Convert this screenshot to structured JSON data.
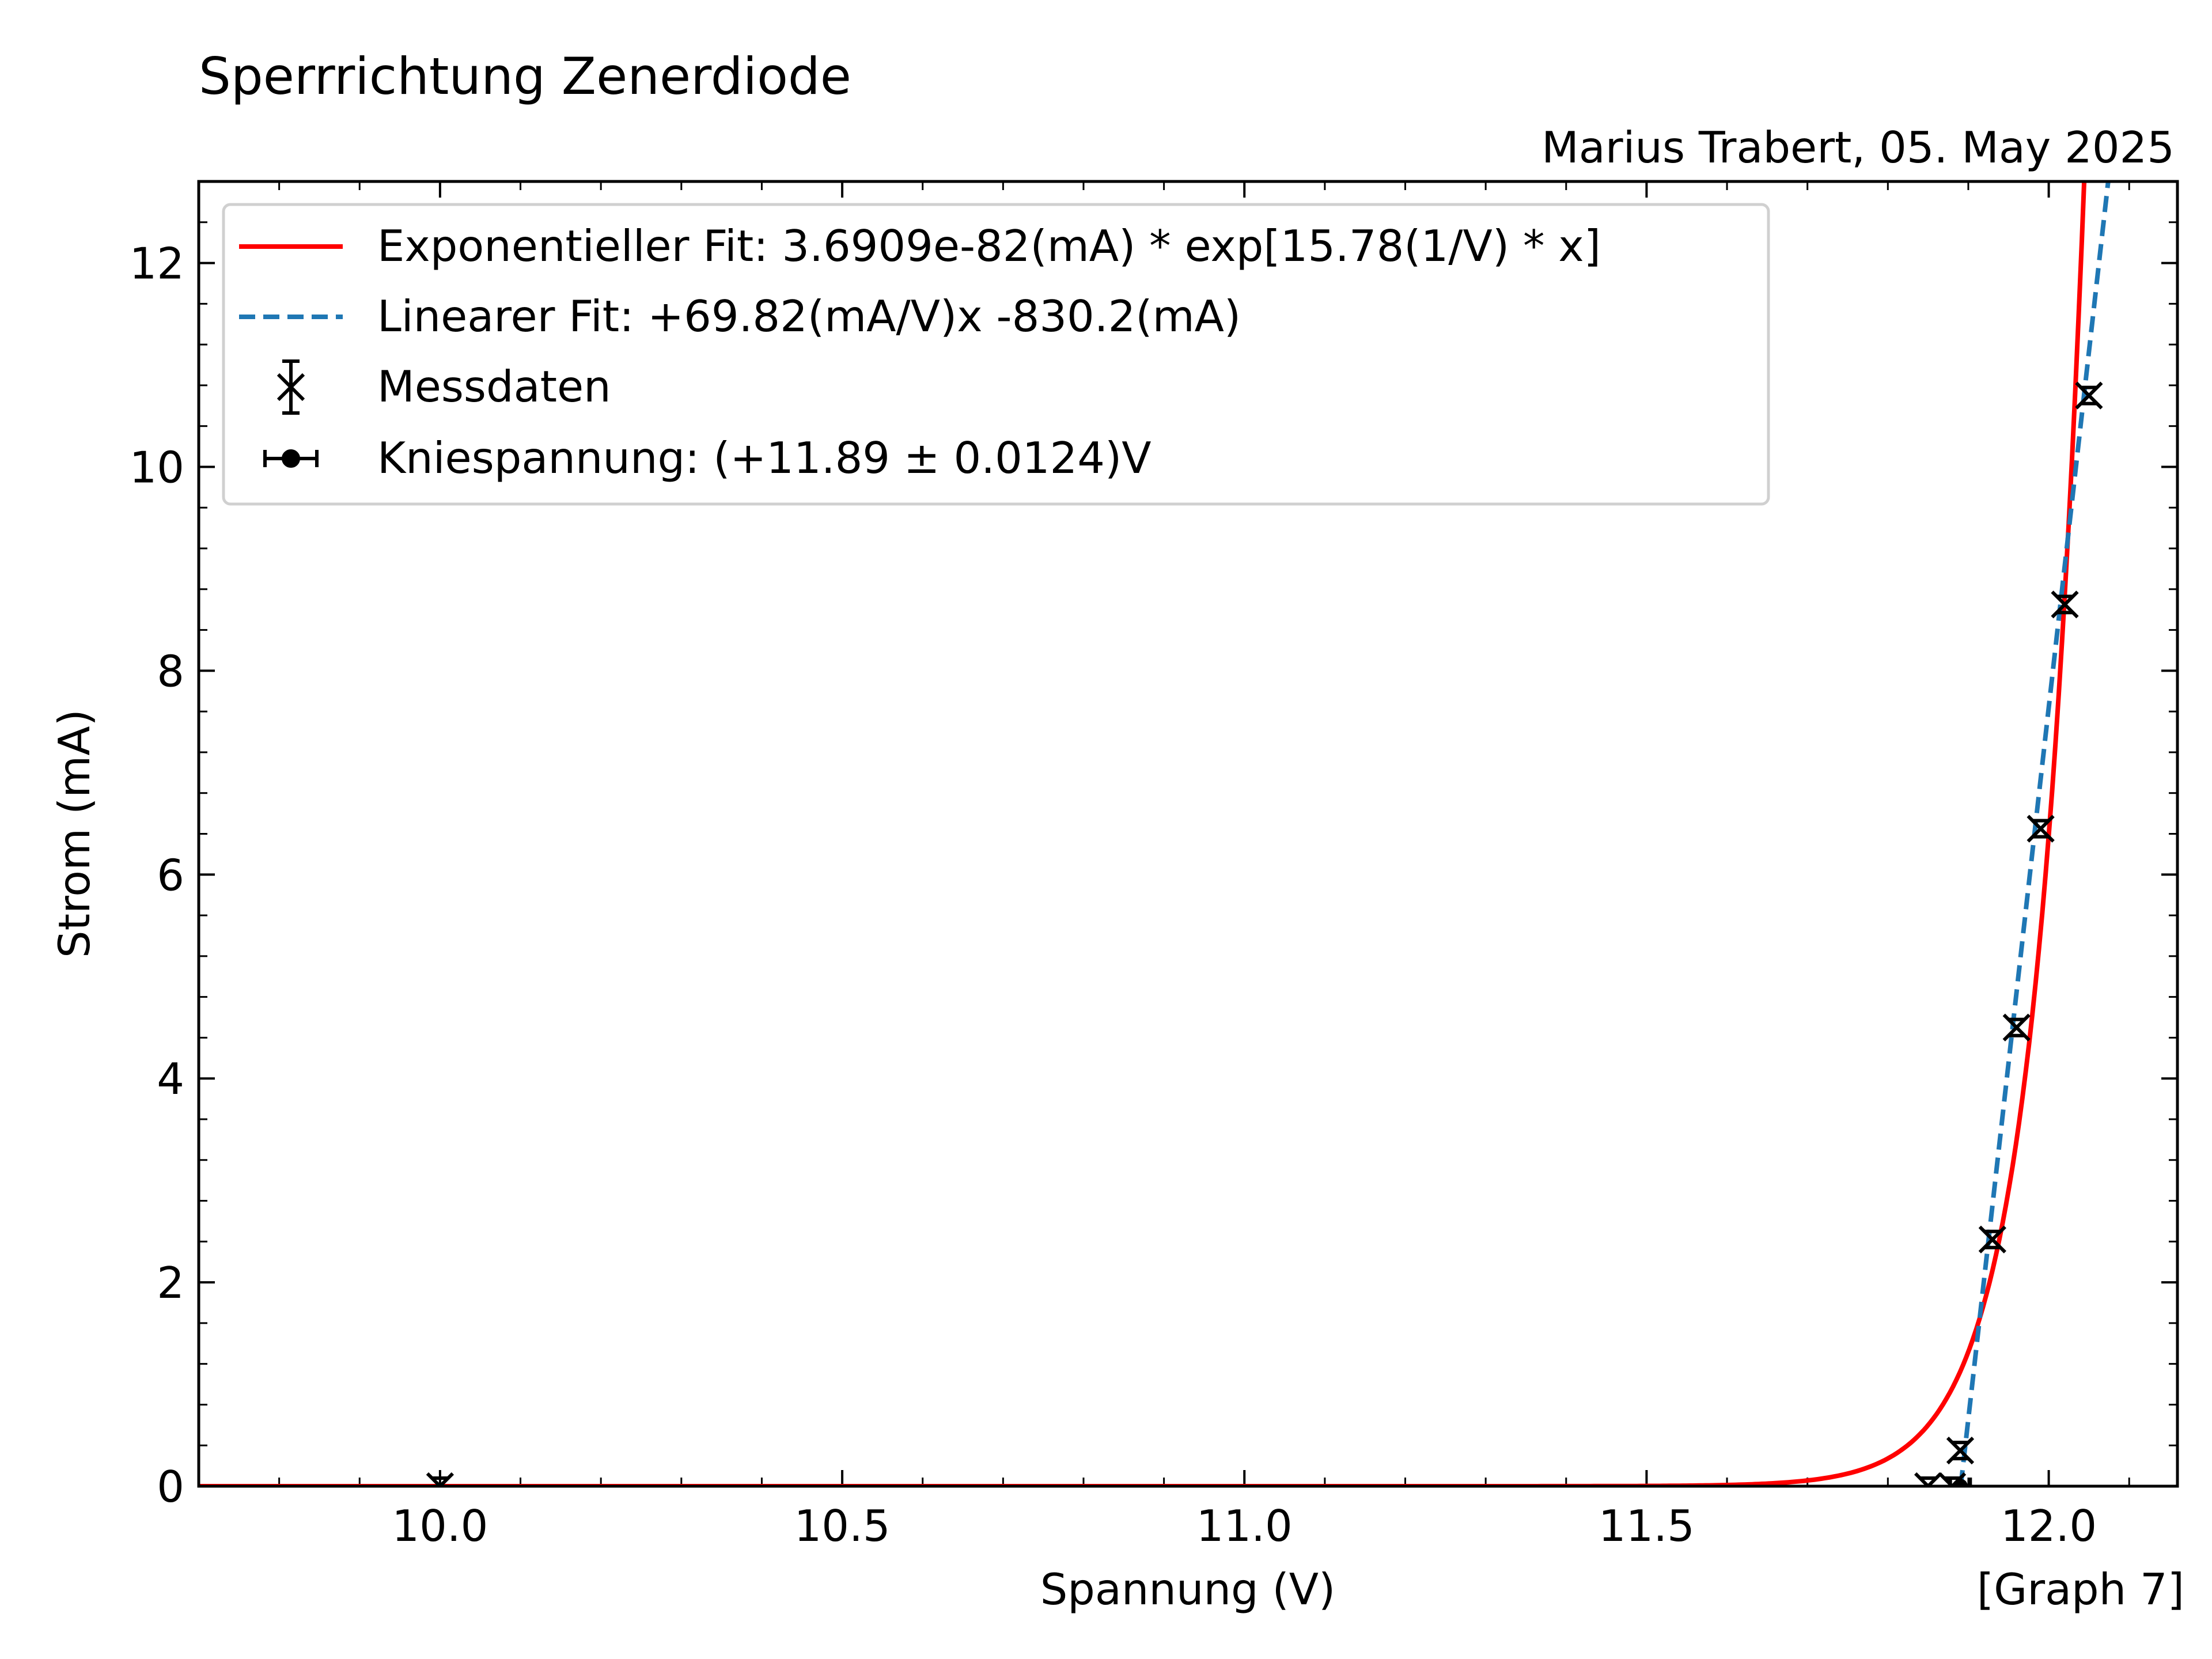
{
  "chart_data": {
    "type": "scatter",
    "title": "Sperrrichtung Zenerdiode",
    "subtitle": "Marius Trabert, 05. May 2025",
    "graph_label": "[Graph 7]",
    "xlabel": "Spannung (V)",
    "ylabel": "Strom (mA)",
    "xlim": [
      9.7,
      12.16
    ],
    "ylim": [
      0,
      12.8
    ],
    "x_ticks": [
      10.0,
      10.5,
      11.0,
      11.5,
      12.0
    ],
    "x_tick_labels": [
      "10.0",
      "10.5",
      "11.0",
      "11.5",
      "12.0"
    ],
    "y_ticks": [
      0,
      2,
      4,
      6,
      8,
      10,
      12
    ],
    "y_tick_labels": [
      "0",
      "2",
      "4",
      "6",
      "8",
      "10",
      "12"
    ],
    "grid": false,
    "legend_position": "top-left",
    "series": [
      {
        "name": "Exponentieller Fit: 3.6909e-82(mA) * exp[15.78(1/V) * x]",
        "kind": "exponential-fit",
        "color": "#ff0000",
        "amplitude": 3.6909e-82,
        "rate": 15.78
      },
      {
        "name": "Linearer Fit:  +69.82(mA/V)x -830.2(mA)",
        "kind": "linear-fit",
        "color": "#1f77b4",
        "slope": 69.82,
        "intercept": -830.2
      },
      {
        "name": "Messdaten",
        "kind": "data",
        "color": "#000000",
        "marker": "x",
        "x": [
          10.0,
          11.85,
          11.88,
          11.89,
          11.93,
          11.96,
          11.99,
          12.02,
          12.05
        ],
        "y": [
          0.0,
          0.0,
          0.0,
          0.35,
          2.42,
          4.5,
          6.45,
          8.65,
          10.7
        ]
      },
      {
        "name": "Kniespannung: (+11.89 ± 0.0124)V",
        "kind": "knee-point",
        "color": "#000000",
        "marker": "o",
        "x": 11.89,
        "y": 0,
        "x_error": 0.0124
      }
    ]
  }
}
